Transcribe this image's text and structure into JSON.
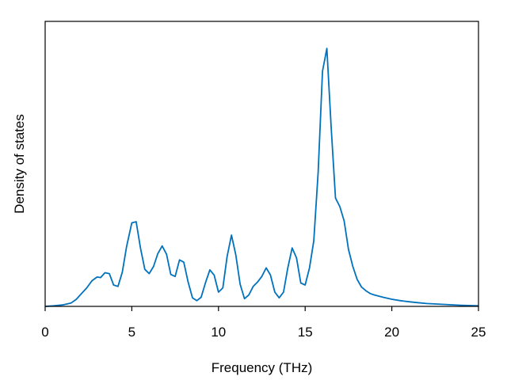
{
  "chart_data": {
    "type": "line",
    "title": "",
    "xlabel": "Frequency (THz)",
    "ylabel": "Density of states",
    "xlim": [
      0,
      25
    ],
    "ylim": [
      0,
      1.0
    ],
    "xticks": [
      0,
      5,
      10,
      15,
      20,
      25
    ],
    "xtick_labels": [
      "0",
      "5",
      "10",
      "15",
      "20",
      "25"
    ],
    "yticks_shown": false,
    "grid": false,
    "legend": "none",
    "line_color": "#0072bd",
    "series": [
      {
        "x": [
          0,
          0.5,
          1.0,
          1.5,
          1.8,
          2.1,
          2.4,
          2.7,
          3.0,
          3.2,
          3.45,
          3.7,
          3.95,
          4.2,
          4.45,
          4.7,
          5.0,
          5.25,
          5.5,
          5.75,
          6.0,
          6.25,
          6.5,
          6.75,
          7.0,
          7.25,
          7.5,
          7.75,
          8.0,
          8.25,
          8.5,
          8.75,
          9.0,
          9.25,
          9.5,
          9.75,
          10.0,
          10.25,
          10.5,
          10.75,
          11.0,
          11.25,
          11.5,
          11.75,
          12.0,
          12.25,
          12.5,
          12.75,
          13.0,
          13.25,
          13.5,
          13.75,
          14.0,
          14.25,
          14.5,
          14.75,
          15.0,
          15.25,
          15.5,
          15.75,
          16.0,
          16.25,
          16.5,
          16.75,
          17.0,
          17.25,
          17.5,
          17.75,
          18.0,
          18.25,
          18.5,
          18.75,
          19.0,
          19.5,
          20.0,
          20.5,
          21.0,
          21.5,
          22.0,
          23.0,
          24.0,
          25.0
        ],
        "values": [
          0.0,
          0.002,
          0.005,
          0.012,
          0.025,
          0.045,
          0.065,
          0.09,
          0.103,
          0.101,
          0.118,
          0.115,
          0.075,
          0.07,
          0.12,
          0.21,
          0.293,
          0.297,
          0.205,
          0.13,
          0.115,
          0.14,
          0.185,
          0.212,
          0.183,
          0.112,
          0.105,
          0.163,
          0.155,
          0.085,
          0.03,
          0.02,
          0.032,
          0.083,
          0.128,
          0.11,
          0.05,
          0.065,
          0.175,
          0.25,
          0.18,
          0.078,
          0.027,
          0.04,
          0.07,
          0.085,
          0.105,
          0.135,
          0.11,
          0.05,
          0.03,
          0.05,
          0.135,
          0.205,
          0.17,
          0.082,
          0.075,
          0.135,
          0.23,
          0.47,
          0.825,
          0.905,
          0.63,
          0.38,
          0.35,
          0.3,
          0.2,
          0.14,
          0.095,
          0.068,
          0.055,
          0.045,
          0.04,
          0.032,
          0.025,
          0.02,
          0.016,
          0.013,
          0.01,
          0.007,
          0.004,
          0.002
        ]
      }
    ]
  }
}
